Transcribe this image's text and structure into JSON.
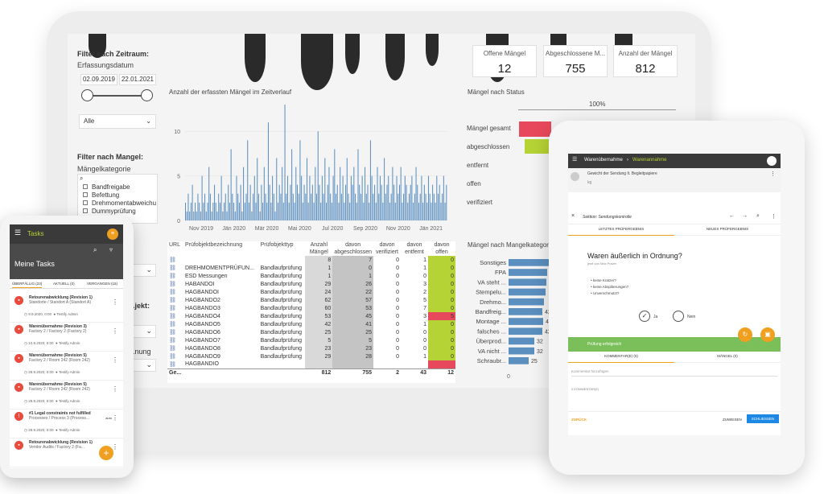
{
  "dashboard": {
    "filter_time_title": "Filter nach Zeitraum:",
    "date_label": "Erfassungsdatum",
    "date_from": "02.09.2019",
    "date_to": "22.01.2021",
    "select_all": "Alle",
    "filter_defect_title": "Filter nach Mangel:",
    "category_label": "Mängelkategorie",
    "categories": [
      "Bandfreigabe",
      "Befettung",
      "Drehmomentabweichu",
      "Dummyprüfung",
      "...ntrollen"
    ],
    "filter_object_title": "...jekt:",
    "filter_misc_title": "...nung",
    "kpis": [
      {
        "label": "Offene Mängel",
        "value": "12"
      },
      {
        "label": "Abgeschlossene M...",
        "value": "755"
      },
      {
        "label": "Anzahl der Mängel",
        "value": "812"
      }
    ],
    "timeline_title": "Anzahl der erfassten Mängel im Zeitverlauf",
    "status_title": "Mängel nach Status",
    "status_pct": "100%",
    "status_rows": [
      "Mängel gesamt",
      "abgeschlossen",
      "entfernt",
      "offen",
      "verifiziert"
    ],
    "category_chart_title": "Mängel nach Mangelkategor...",
    "table": {
      "headers": [
        "URL",
        "Prüfobjektbezeichnung",
        "Prüfobjekttyp",
        "Anzahl Mängel",
        "davon abgeschlossen",
        "davon verifiziert",
        "davon entfernt",
        "davon offen"
      ],
      "rows": [
        [
          "",
          "",
          "",
          "8",
          "7",
          "0",
          "1",
          "0"
        ],
        [
          "",
          "DREHMOMENTPRÜFUN...",
          "Bandlaufprüfung",
          "1",
          "0",
          "0",
          "1",
          "0"
        ],
        [
          "",
          "ESD Messungen",
          "Bandlaufprüfung",
          "1",
          "1",
          "0",
          "0",
          "0"
        ],
        [
          "",
          "HABANDOI",
          "Bandlaufprüfung",
          "29",
          "26",
          "0",
          "3",
          "0"
        ],
        [
          "",
          "HAGBANDOI",
          "Bandlaufprüfung",
          "24",
          "22",
          "0",
          "2",
          "0"
        ],
        [
          "",
          "HAGBANDO2",
          "Bandlaufprüfung",
          "62",
          "57",
          "0",
          "5",
          "0"
        ],
        [
          "",
          "HAGBANDO3",
          "Bandlaufprüfung",
          "60",
          "53",
          "0",
          "7",
          "0"
        ],
        [
          "",
          "HAGBANDO4",
          "Bandlaufprüfung",
          "53",
          "45",
          "0",
          "3",
          "5"
        ],
        [
          "",
          "HAGBANDO5",
          "Bandlaufprüfung",
          "42",
          "41",
          "0",
          "1",
          "0"
        ],
        [
          "",
          "HAGBANDO6",
          "Bandlaufprüfung",
          "25",
          "25",
          "0",
          "0",
          "0"
        ],
        [
          "",
          "HAGBANDO7",
          "Bandlaufprüfung",
          "5",
          "5",
          "0",
          "0",
          "0"
        ],
        [
          "",
          "HAGBANDO8",
          "Bandlaufprüfung",
          "23",
          "23",
          "0",
          "0",
          "0"
        ],
        [
          "",
          "HAGBANDO9",
          "Bandlaufprüfung",
          "29",
          "28",
          "0",
          "1",
          "0"
        ],
        [
          "",
          "HAGBANDIO",
          "",
          "",
          "",
          "",
          "",
          ""
        ]
      ],
      "total": [
        "Ge...",
        "",
        "",
        "812",
        "755",
        "2",
        "43",
        "12"
      ]
    }
  },
  "chart_data": [
    {
      "type": "bar",
      "title": "Anzahl der erfassten Mängel im Zeitverlauf",
      "x_ticks": [
        "Nov 2019",
        "Jän 2020",
        "Mär 2020",
        "Mai 2020",
        "Jul 2020",
        "Sep 2020",
        "Nov 2020",
        "Jän 2021"
      ],
      "y_ticks": [
        "0",
        "5",
        "10"
      ],
      "ylim": [
        0,
        13
      ],
      "values": [
        2,
        1,
        3,
        1,
        2,
        4,
        1,
        2,
        1,
        3,
        2,
        1,
        5,
        2,
        3,
        1,
        2,
        6,
        3,
        1,
        2,
        4,
        2,
        1,
        3,
        2,
        5,
        1,
        2,
        3,
        1,
        4,
        2,
        8,
        3,
        2,
        1,
        5,
        3,
        2,
        4,
        1,
        6,
        2,
        3,
        9,
        2,
        4,
        1,
        3,
        5,
        2,
        7,
        3,
        1,
        4,
        2,
        6,
        3,
        2,
        11,
        4,
        2,
        5,
        3,
        1,
        7,
        2,
        4,
        3,
        6,
        2,
        13,
        3,
        5,
        2,
        4,
        8,
        3,
        2,
        6,
        4,
        3,
        9,
        5,
        2,
        4,
        3,
        7,
        2,
        5,
        3,
        4,
        2,
        6,
        3,
        10,
        4,
        2,
        5,
        3,
        7,
        2,
        4,
        6,
        3,
        2,
        5,
        8,
        3,
        4,
        2,
        6,
        3,
        5,
        2,
        4,
        7,
        3,
        2,
        5,
        4,
        6,
        3,
        2,
        8,
        4,
        3,
        5,
        2,
        6,
        3,
        4,
        2,
        9,
        5,
        3,
        4,
        2,
        6,
        3,
        5,
        4,
        2,
        7,
        3,
        4,
        5,
        2,
        3,
        6,
        4,
        2,
        5,
        3,
        4,
        6,
        2,
        3,
        5,
        4,
        2,
        3,
        4,
        5,
        2,
        3,
        6,
        4,
        2,
        3,
        5,
        2,
        4,
        3,
        2,
        5,
        3,
        2,
        4,
        3,
        2,
        5,
        3,
        4,
        2,
        3,
        5,
        2,
        4
      ]
    },
    {
      "type": "bar",
      "title": "Mängel nach Mangelkategor...",
      "categories": [
        "Sonstiges",
        "FPA",
        "VA steht ...",
        "Stempelu...",
        "Drehmo...",
        "Bandfreig...",
        "Montage ...",
        "falsches ...",
        "Überprod...",
        "VA nicht ...",
        "Schraubr..."
      ],
      "values": [
        52,
        48,
        47,
        46,
        44,
        42,
        43,
        42,
        32,
        32,
        25
      ],
      "labels": [
        "",
        "",
        "",
        "",
        "",
        "42",
        "43",
        "42",
        "32",
        "32",
        "25"
      ],
      "x_ticks": [
        "0"
      ]
    }
  ],
  "phone": {
    "app_title": "Tasks",
    "page_title": "Meine Tasks",
    "tabs": [
      "ÜBERFÄLLIG (23)",
      "AKTUELL (0)",
      "VERGANGEN (15)"
    ],
    "tasks": [
      {
        "title": "Retourenabwicklung (Revision 1)",
        "sub": "Standorte / Standort A (Standort A)",
        "meta": "9.9.2020, 0:00",
        "user": "Testify Admin"
      },
      {
        "title": "Warenübernahme (Revision 3)",
        "sub": "Factory 2 / Factory 2 (Factory 2)",
        "meta": "10.9.2020, 0:00",
        "user": "Testify Admin"
      },
      {
        "title": "Warenübernahme (Revision 5)",
        "sub": "Factory 2 / Room 242 (Room 242)",
        "meta": "29.9.2020, 0:00",
        "user": "Testify Admin"
      },
      {
        "title": "Warenübernahme (Revision 5)",
        "sub": "Factory 2 / Room 242 (Room 242)",
        "meta": "29.9.2020, 0:00",
        "user": "Testify Admin"
      },
      {
        "title": "#1 Legal constraints not fulfilled",
        "sub": "Processes / Process 3 (Process...",
        "meta": "29.9.2020, 0:00",
        "user": "Testify Admin",
        "extra": "auto"
      },
      {
        "title": "Retourenabwicklung (Revision 1)",
        "sub": "Vendor Audits / Factory 2 (Fa...",
        "meta": "",
        "user": ""
      }
    ]
  },
  "tablet": {
    "breadcrumb_a": "Warenübernahme",
    "breadcrumb_b": "Warenannahme",
    "field_title": "Gewicht der Sendung lt. Begleitpapiere",
    "field_unit": "kg",
    "section": "Sektion: Sendungskontrolle",
    "tab_last": "LETZTES PRÜFERGEBNIS",
    "tab_new": "NEUES PRÜFERGEBNIS",
    "question": "Waren äußerlich in Ordnung?",
    "question_sub": "jetzt von Max Power",
    "bullets": [
      "keine Kratzer?",
      "keine Abspliterungen?",
      "Unverschmutzt?"
    ],
    "yes": "Ja",
    "no": "Nein",
    "success": "Prüfung erfolgreich",
    "tab_comments": "KOMMENTAR(E) (0)",
    "tab_defects": "MÄNGEL (0)",
    "comment_placeholder": "Kommentar hinzufügen",
    "comment_count": "0 KOMMENTAR(E)",
    "back": "ZURÜCK",
    "assign": "ZUWEISEN",
    "close": "SCHLIESSEN"
  }
}
